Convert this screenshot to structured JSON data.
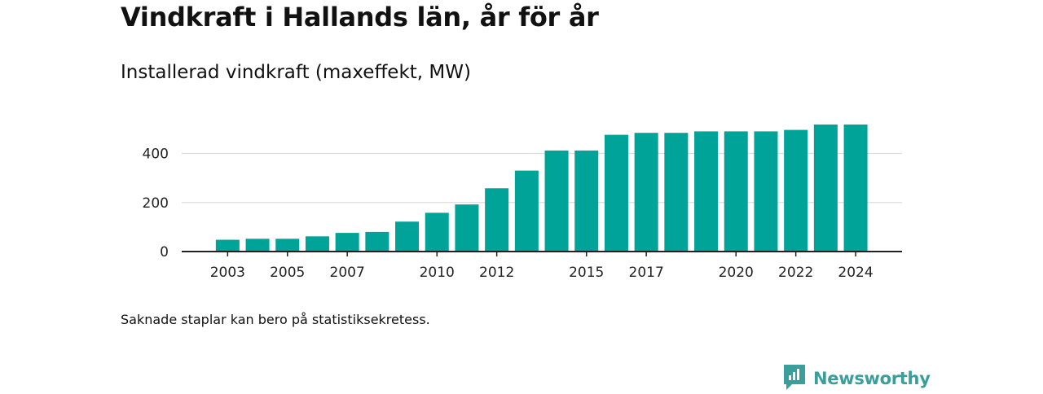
{
  "header": {
    "title": "Vindkraft i Hallands län, år för år",
    "subtitle": "Installerad vindkraft (maxeffekt, MW)"
  },
  "footer": {
    "note": "Saknade staplar kan bero på statistiksekretess.",
    "brand": "Newsworthy"
  },
  "colors": {
    "bar": "#00a398",
    "grid": "#dddddd",
    "axis": "#222222",
    "brand": "#3a9e9a"
  },
  "chart_data": {
    "type": "bar",
    "title": "Vindkraft i Hallands län, år för år",
    "subtitle": "Installerad vindkraft (maxeffekt, MW)",
    "xlabel": "",
    "ylabel": "",
    "categories": [
      "2003",
      "2004",
      "2005",
      "2006",
      "2007",
      "2008",
      "2009",
      "2010",
      "2011",
      "2012",
      "2013",
      "2014",
      "2015",
      "2016",
      "2017",
      "2018",
      "2019",
      "2020",
      "2021",
      "2022",
      "2023",
      "2024"
    ],
    "values": [
      48,
      52,
      52,
      62,
      76,
      80,
      122,
      158,
      192,
      258,
      330,
      412,
      412,
      476,
      484,
      484,
      490,
      490,
      490,
      496,
      518,
      518
    ],
    "x_tick_labels": [
      "2003",
      "2005",
      "2007",
      "2010",
      "2012",
      "2015",
      "2017",
      "2020",
      "2022",
      "2024"
    ],
    "y_ticks": [
      0,
      200,
      400
    ],
    "ylim": [
      0,
      520
    ],
    "grid": true,
    "legend": "none"
  }
}
